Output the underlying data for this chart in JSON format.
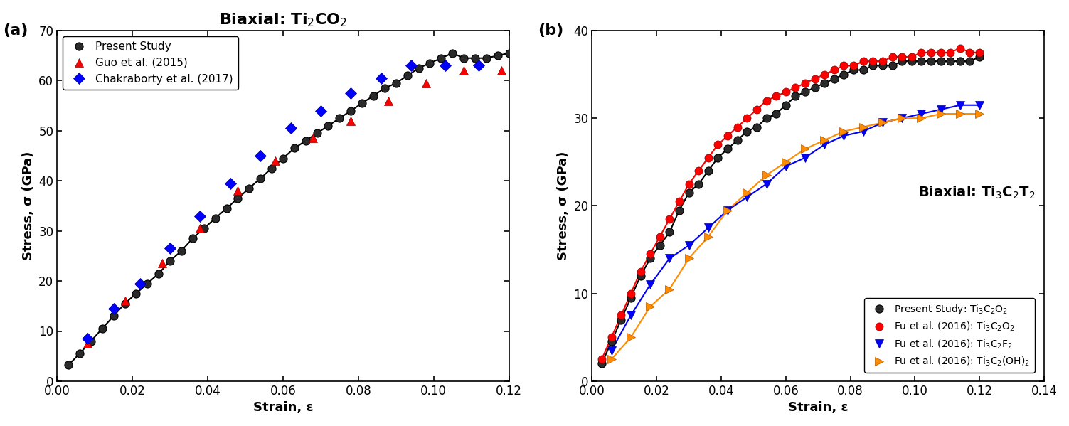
{
  "panel_a": {
    "title": "Biaxial: Ti$_2$CO$_2$",
    "xlabel": "Strain, ε",
    "ylabel": "Stress, σ (GPa)",
    "xlim": [
      0.0,
      0.12
    ],
    "ylim": [
      0,
      70
    ],
    "xticks": [
      0.0,
      0.02,
      0.04,
      0.06,
      0.08,
      0.1,
      0.12
    ],
    "yticks": [
      0,
      10,
      20,
      30,
      40,
      50,
      60,
      70
    ],
    "present_study_x": [
      0.003,
      0.006,
      0.009,
      0.012,
      0.015,
      0.018,
      0.021,
      0.024,
      0.027,
      0.03,
      0.033,
      0.036,
      0.039,
      0.042,
      0.045,
      0.048,
      0.051,
      0.054,
      0.057,
      0.06,
      0.063,
      0.066,
      0.069,
      0.072,
      0.075,
      0.078,
      0.081,
      0.084,
      0.087,
      0.09,
      0.093,
      0.096,
      0.099,
      0.102,
      0.105,
      0.108,
      0.111,
      0.114,
      0.117,
      0.12
    ],
    "present_study_y": [
      3.2,
      5.5,
      8.0,
      10.5,
      13.0,
      15.5,
      17.5,
      19.5,
      21.5,
      24.0,
      26.0,
      28.5,
      30.5,
      32.5,
      34.5,
      36.5,
      38.5,
      40.5,
      42.5,
      44.5,
      46.5,
      48.0,
      49.5,
      51.0,
      52.5,
      54.0,
      55.5,
      57.0,
      58.5,
      59.5,
      61.0,
      62.5,
      63.5,
      64.5,
      65.5,
      64.5,
      64.5,
      64.5,
      65.0,
      65.5
    ],
    "guo_x": [
      0.008,
      0.018,
      0.028,
      0.038,
      0.048,
      0.058,
      0.068,
      0.078,
      0.088,
      0.098,
      0.108,
      0.118
    ],
    "guo_y": [
      7.5,
      16.0,
      23.5,
      30.5,
      38.0,
      44.0,
      48.5,
      52.0,
      56.0,
      59.5,
      62.0,
      62.0
    ],
    "chakraborty_x": [
      0.008,
      0.015,
      0.022,
      0.03,
      0.038,
      0.046,
      0.054,
      0.062,
      0.07,
      0.078,
      0.086,
      0.094,
      0.103,
      0.112
    ],
    "chakraborty_y": [
      8.5,
      14.5,
      19.5,
      26.5,
      33.0,
      39.5,
      45.0,
      50.5,
      54.0,
      57.5,
      60.5,
      63.0,
      63.0,
      63.0
    ]
  },
  "panel_b": {
    "title": "Biaxial: Ti$_3$C$_2$T$_2$",
    "xlabel": "Strain, ε",
    "ylabel": "Stress, σ (GPa)",
    "xlim": [
      0.0,
      0.14
    ],
    "ylim": [
      0,
      40
    ],
    "xticks": [
      0.0,
      0.02,
      0.04,
      0.06,
      0.08,
      0.1,
      0.12,
      0.14
    ],
    "yticks": [
      0,
      10,
      20,
      30,
      40
    ],
    "present_x": [
      0.003,
      0.006,
      0.009,
      0.012,
      0.015,
      0.018,
      0.021,
      0.024,
      0.027,
      0.03,
      0.033,
      0.036,
      0.039,
      0.042,
      0.045,
      0.048,
      0.051,
      0.054,
      0.057,
      0.06,
      0.063,
      0.066,
      0.069,
      0.072,
      0.075,
      0.078,
      0.081,
      0.084,
      0.087,
      0.09,
      0.093,
      0.096,
      0.099,
      0.102,
      0.105,
      0.108,
      0.111,
      0.114,
      0.117,
      0.12
    ],
    "present_y": [
      2.0,
      4.5,
      7.0,
      9.5,
      12.0,
      14.0,
      15.5,
      17.0,
      19.5,
      21.5,
      22.5,
      24.0,
      25.5,
      26.5,
      27.5,
      28.5,
      29.0,
      30.0,
      30.5,
      31.5,
      32.5,
      33.0,
      33.5,
      34.0,
      34.5,
      35.0,
      35.5,
      35.5,
      36.0,
      36.0,
      36.0,
      36.5,
      36.5,
      36.5,
      36.5,
      36.5,
      36.5,
      36.5,
      36.5,
      37.0
    ],
    "fu_o2_x": [
      0.003,
      0.006,
      0.009,
      0.012,
      0.015,
      0.018,
      0.021,
      0.024,
      0.027,
      0.03,
      0.033,
      0.036,
      0.039,
      0.042,
      0.045,
      0.048,
      0.051,
      0.054,
      0.057,
      0.06,
      0.063,
      0.066,
      0.069,
      0.072,
      0.075,
      0.078,
      0.081,
      0.084,
      0.087,
      0.09,
      0.093,
      0.096,
      0.099,
      0.102,
      0.105,
      0.108,
      0.111,
      0.114,
      0.117,
      0.12
    ],
    "fu_o2_y": [
      2.5,
      5.0,
      7.5,
      10.0,
      12.5,
      14.5,
      16.5,
      18.5,
      20.5,
      22.5,
      24.0,
      25.5,
      27.0,
      28.0,
      29.0,
      30.0,
      31.0,
      32.0,
      32.5,
      33.0,
      33.5,
      34.0,
      34.5,
      35.0,
      35.5,
      36.0,
      36.0,
      36.5,
      36.5,
      36.5,
      37.0,
      37.0,
      37.0,
      37.5,
      37.5,
      37.5,
      37.5,
      38.0,
      37.5,
      37.5
    ],
    "fu_f2_x": [
      0.006,
      0.012,
      0.018,
      0.024,
      0.03,
      0.036,
      0.042,
      0.048,
      0.054,
      0.06,
      0.066,
      0.072,
      0.078,
      0.084,
      0.09,
      0.096,
      0.102,
      0.108,
      0.114,
      0.12
    ],
    "fu_f2_y": [
      3.5,
      7.5,
      11.0,
      14.0,
      15.5,
      17.5,
      19.5,
      21.0,
      22.5,
      24.5,
      25.5,
      27.0,
      28.0,
      28.5,
      29.5,
      30.0,
      30.5,
      31.0,
      31.5,
      31.5
    ],
    "fu_oh2_x": [
      0.006,
      0.012,
      0.018,
      0.024,
      0.03,
      0.036,
      0.042,
      0.048,
      0.054,
      0.06,
      0.066,
      0.072,
      0.078,
      0.084,
      0.09,
      0.096,
      0.102,
      0.108,
      0.114,
      0.12
    ],
    "fu_oh2_y": [
      2.5,
      5.0,
      8.5,
      10.5,
      14.0,
      16.5,
      19.5,
      21.5,
      23.5,
      25.0,
      26.5,
      27.5,
      28.5,
      29.0,
      29.5,
      30.0,
      30.0,
      30.5,
      30.5,
      30.5
    ]
  },
  "label_a": "(a)",
  "label_b": "(b)"
}
